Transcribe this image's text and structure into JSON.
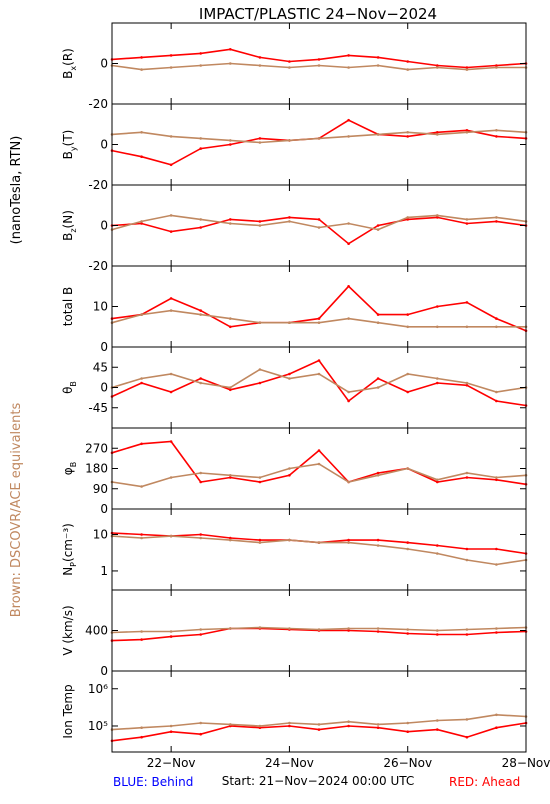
{
  "title": "IMPACT/PLASTIC   24−Nov−2024",
  "side_label_black": "(nanoTesla, RTN)",
  "side_label_brown": "Brown: DSCOVR/ACE equivalents",
  "footer": {
    "behind": "BLUE: Behind",
    "start": "Start: 21−Nov−2024 00:00 UTC",
    "ahead": "RED: Ahead"
  },
  "colors": {
    "ahead": "#ff0000",
    "earth": "#c08860",
    "behind": "#0000ff",
    "axis": "#000000"
  },
  "chart_data": {
    "type": "line",
    "x_axis": {
      "range": [
        "2024-11-21 00:00",
        "2024-11-28 00:00"
      ],
      "tick_labels": [
        "22−Nov",
        "24−Nov",
        "26−Nov",
        "28−Nov"
      ],
      "tick_dates": [
        "2024-11-22",
        "2024-11-24",
        "2024-11-26",
        "2024-11-28"
      ]
    },
    "panels": [
      {
        "key": "bx",
        "ylabel": "B",
        "ysub": "x",
        "ysuffix": "(R)",
        "ylim": [
          -20,
          20
        ],
        "yticks": [
          0,
          -20
        ],
        "scale": "linear",
        "series": [
          {
            "color_key": "ahead",
            "x": [
              0,
              0.5,
              1,
              1.5,
              2,
              2.5,
              3,
              3.5,
              4,
              4.5,
              5,
              5.5,
              6,
              6.5,
              7
            ],
            "y": [
              2,
              3,
              4,
              5,
              7,
              3,
              1,
              2,
              4,
              3,
              1,
              -1,
              -2,
              -1,
              0
            ]
          },
          {
            "color_key": "earth",
            "x": [
              0,
              0.5,
              1,
              1.5,
              2,
              2.5,
              3,
              3.5,
              4,
              4.5,
              5,
              5.5,
              6,
              6.5,
              7
            ],
            "y": [
              -1,
              -3,
              -2,
              -1,
              0,
              -1,
              -2,
              -1,
              -2,
              -1,
              -3,
              -2,
              -3,
              -2,
              -2
            ]
          }
        ]
      },
      {
        "key": "by",
        "ylabel": "B",
        "ysub": "y",
        "ysuffix": "(T)",
        "ylim": [
          -20,
          20
        ],
        "yticks": [
          0,
          -20
        ],
        "scale": "linear",
        "series": [
          {
            "color_key": "ahead",
            "x": [
              0,
              0.5,
              1,
              1.5,
              2,
              2.5,
              3,
              3.5,
              4,
              4.5,
              5,
              5.5,
              6,
              6.5,
              7
            ],
            "y": [
              -3,
              -6,
              -10,
              -2,
              0,
              3,
              2,
              3,
              12,
              5,
              4,
              6,
              7,
              4,
              3
            ]
          },
          {
            "color_key": "earth",
            "x": [
              0,
              0.5,
              1,
              1.5,
              2,
              2.5,
              3,
              3.5,
              4,
              4.5,
              5,
              5.5,
              6,
              6.5,
              7
            ],
            "y": [
              5,
              6,
              4,
              3,
              2,
              1,
              2,
              3,
              4,
              5,
              6,
              5,
              6,
              7,
              6
            ]
          }
        ]
      },
      {
        "key": "bz",
        "ylabel": "B",
        "ysub": "z",
        "ysuffix": "(N)",
        "ylim": [
          -20,
          20
        ],
        "yticks": [
          0,
          -20
        ],
        "scale": "linear",
        "series": [
          {
            "color_key": "ahead",
            "x": [
              0,
              0.5,
              1,
              1.5,
              2,
              2.5,
              3,
              3.5,
              4,
              4.5,
              5,
              5.5,
              6,
              6.5,
              7
            ],
            "y": [
              0,
              1,
              -3,
              -1,
              3,
              2,
              4,
              3,
              -9,
              0,
              3,
              4,
              1,
              2,
              0
            ]
          },
          {
            "color_key": "earth",
            "x": [
              0,
              0.5,
              1,
              1.5,
              2,
              2.5,
              3,
              3.5,
              4,
              4.5,
              5,
              5.5,
              6,
              6.5,
              7
            ],
            "y": [
              -2,
              2,
              5,
              3,
              1,
              0,
              2,
              -1,
              1,
              -2,
              4,
              5,
              3,
              4,
              2
            ]
          }
        ]
      },
      {
        "key": "btot",
        "ylabel": "total B",
        "ysub": "",
        "ysuffix": "",
        "ylim": [
          0,
          20
        ],
        "yticks": [
          10,
          0
        ],
        "scale": "linear",
        "series": [
          {
            "color_key": "ahead",
            "x": [
              0,
              0.5,
              1,
              1.5,
              2,
              2.5,
              3,
              3.5,
              4,
              4.5,
              5,
              5.5,
              6,
              6.5,
              7
            ],
            "y": [
              7,
              8,
              12,
              9,
              5,
              6,
              6,
              7,
              15,
              8,
              8,
              10,
              11,
              7,
              4
            ]
          },
          {
            "color_key": "earth",
            "x": [
              0,
              0.5,
              1,
              1.5,
              2,
              2.5,
              3,
              3.5,
              4,
              4.5,
              5,
              5.5,
              6,
              6.5,
              7
            ],
            "y": [
              6,
              8,
              9,
              8,
              7,
              6,
              6,
              6,
              7,
              6,
              5,
              5,
              5,
              5,
              5
            ]
          }
        ]
      },
      {
        "key": "theta",
        "ylabel": "θ",
        "ysub": "B",
        "ysuffix": "",
        "ylim": [
          -90,
          90
        ],
        "yticks": [
          45,
          0,
          -45
        ],
        "scale": "linear",
        "series": [
          {
            "color_key": "ahead",
            "x": [
              0,
              0.5,
              1,
              1.5,
              2,
              2.5,
              3,
              3.5,
              4,
              4.5,
              5,
              5.5,
              6,
              6.5,
              7
            ],
            "y": [
              -20,
              10,
              -10,
              20,
              -5,
              10,
              30,
              60,
              -30,
              20,
              -10,
              10,
              5,
              -30,
              -40
            ]
          },
          {
            "color_key": "earth",
            "x": [
              0,
              0.5,
              1,
              1.5,
              2,
              2.5,
              3,
              3.5,
              4,
              4.5,
              5,
              5.5,
              6,
              6.5,
              7
            ],
            "y": [
              0,
              20,
              30,
              10,
              0,
              40,
              20,
              30,
              -10,
              0,
              30,
              20,
              10,
              -10,
              0
            ]
          }
        ]
      },
      {
        "key": "phi",
        "ylabel": "φ",
        "ysub": "B",
        "ysuffix": "",
        "ylim": [
          0,
          360
        ],
        "yticks": [
          270,
          180,
          90,
          0
        ],
        "scale": "linear",
        "series": [
          {
            "color_key": "ahead",
            "x": [
              0,
              0.5,
              1,
              1.5,
              2,
              2.5,
              3,
              3.5,
              4,
              4.5,
              5,
              5.5,
              6,
              6.5,
              7
            ],
            "y": [
              250,
              290,
              300,
              120,
              140,
              120,
              150,
              260,
              120,
              160,
              180,
              120,
              140,
              130,
              110
            ]
          },
          {
            "color_key": "earth",
            "x": [
              0,
              0.5,
              1,
              1.5,
              2,
              2.5,
              3,
              3.5,
              4,
              4.5,
              5,
              5.5,
              6,
              6.5,
              7
            ],
            "y": [
              120,
              100,
              140,
              160,
              150,
              140,
              180,
              200,
              120,
              150,
              180,
              130,
              160,
              140,
              150
            ]
          }
        ]
      },
      {
        "key": "np",
        "ylabel": "N",
        "ysub": "P",
        "ysuffix": "(cm⁻³)",
        "ylim": [
          0.3,
          50
        ],
        "yticks": [
          10,
          1
        ],
        "scale": "log",
        "series": [
          {
            "color_key": "ahead",
            "x": [
              0,
              0.5,
              1,
              1.5,
              2,
              2.5,
              3,
              3.5,
              4,
              4.5,
              5,
              5.5,
              6,
              6.5,
              7
            ],
            "y": [
              11,
              10,
              9,
              10,
              8,
              7,
              7,
              6,
              7,
              7,
              6,
              5,
              4,
              4,
              3
            ]
          },
          {
            "color_key": "earth",
            "x": [
              0,
              0.5,
              1,
              1.5,
              2,
              2.5,
              3,
              3.5,
              4,
              4.5,
              5,
              5.5,
              6,
              6.5,
              7
            ],
            "y": [
              9,
              8,
              9,
              8,
              7,
              6,
              7,
              6,
              6,
              5,
              4,
              3,
              2,
              1.5,
              2
            ]
          }
        ]
      },
      {
        "key": "v",
        "ylabel": "V (km/s)",
        "ysub": "",
        "ysuffix": "",
        "ylim": [
          0,
          800
        ],
        "yticks": [
          400,
          0
        ],
        "scale": "linear",
        "series": [
          {
            "color_key": "ahead",
            "x": [
              0,
              0.5,
              1,
              1.5,
              2,
              2.5,
              3,
              3.5,
              4,
              4.5,
              5,
              5.5,
              6,
              6.5,
              7
            ],
            "y": [
              300,
              310,
              340,
              360,
              420,
              420,
              410,
              400,
              400,
              390,
              370,
              360,
              360,
              380,
              390
            ]
          },
          {
            "color_key": "earth",
            "x": [
              0,
              0.5,
              1,
              1.5,
              2,
              2.5,
              3,
              3.5,
              4,
              4.5,
              5,
              5.5,
              6,
              6.5,
              7
            ],
            "y": [
              380,
              390,
              390,
              410,
              420,
              430,
              420,
              410,
              420,
              420,
              410,
              400,
              410,
              420,
              430
            ]
          }
        ]
      },
      {
        "key": "temp",
        "ylabel": "Ion Temp",
        "ysub": "",
        "ysuffix": "",
        "ylim": [
          20000,
          3000000
        ],
        "yticks": [
          1000000,
          100000
        ],
        "ytick_labels": [
          "10⁶",
          "10⁵"
        ],
        "scale": "log",
        "series": [
          {
            "color_key": "ahead",
            "x": [
              0,
              0.5,
              1,
              1.5,
              2,
              2.5,
              3,
              3.5,
              4,
              4.5,
              5,
              5.5,
              6,
              6.5,
              7
            ],
            "y": [
              40000,
              50000,
              70000,
              60000,
              100000,
              90000,
              100000,
              80000,
              100000,
              90000,
              70000,
              80000,
              50000,
              90000,
              120000
            ]
          },
          {
            "color_key": "earth",
            "x": [
              0,
              0.5,
              1,
              1.5,
              2,
              2.5,
              3,
              3.5,
              4,
              4.5,
              5,
              5.5,
              6,
              6.5,
              7
            ],
            "y": [
              80000,
              90000,
              100000,
              120000,
              110000,
              100000,
              120000,
              110000,
              130000,
              110000,
              120000,
              140000,
              150000,
              200000,
              180000
            ]
          }
        ]
      }
    ]
  }
}
